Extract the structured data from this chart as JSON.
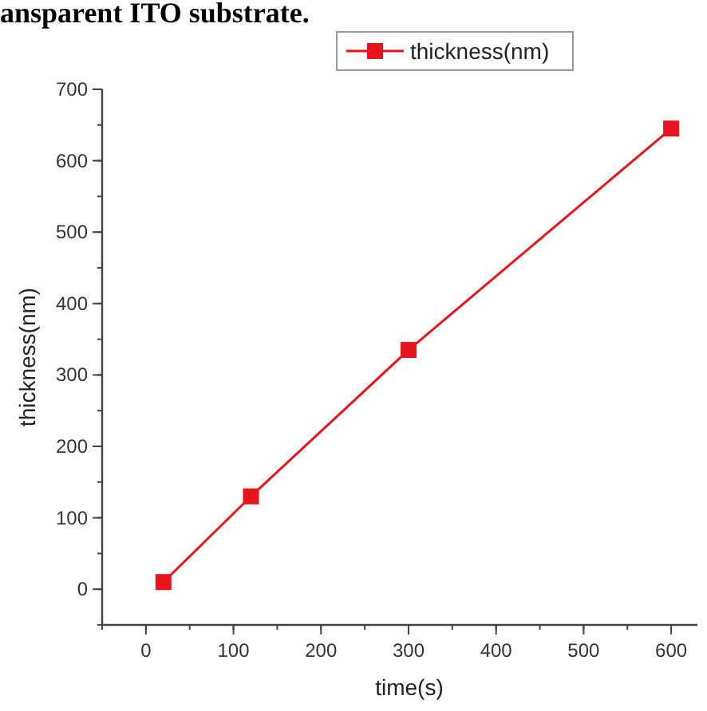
{
  "chart_data": {
    "type": "line",
    "xlabel": "time(s)",
    "ylabel": "thickness(nm)",
    "annotations": [
      "ansparent ITO substrate."
    ],
    "x": [
      20,
      120,
      300,
      600
    ],
    "series": [
      {
        "name": "thickness(nm)",
        "color": "#e8141c",
        "values": [
          10,
          130,
          335,
          645
        ]
      }
    ],
    "xlim": [
      -50,
      630
    ],
    "xticks": [
      0,
      100,
      200,
      300,
      400,
      500,
      600
    ],
    "ylim": [
      -50,
      700
    ],
    "yticks": [
      0,
      100,
      200,
      300,
      400,
      500,
      600,
      700
    ],
    "marker": "square",
    "line_style": "solid",
    "legend": "top right",
    "grid": false
  }
}
